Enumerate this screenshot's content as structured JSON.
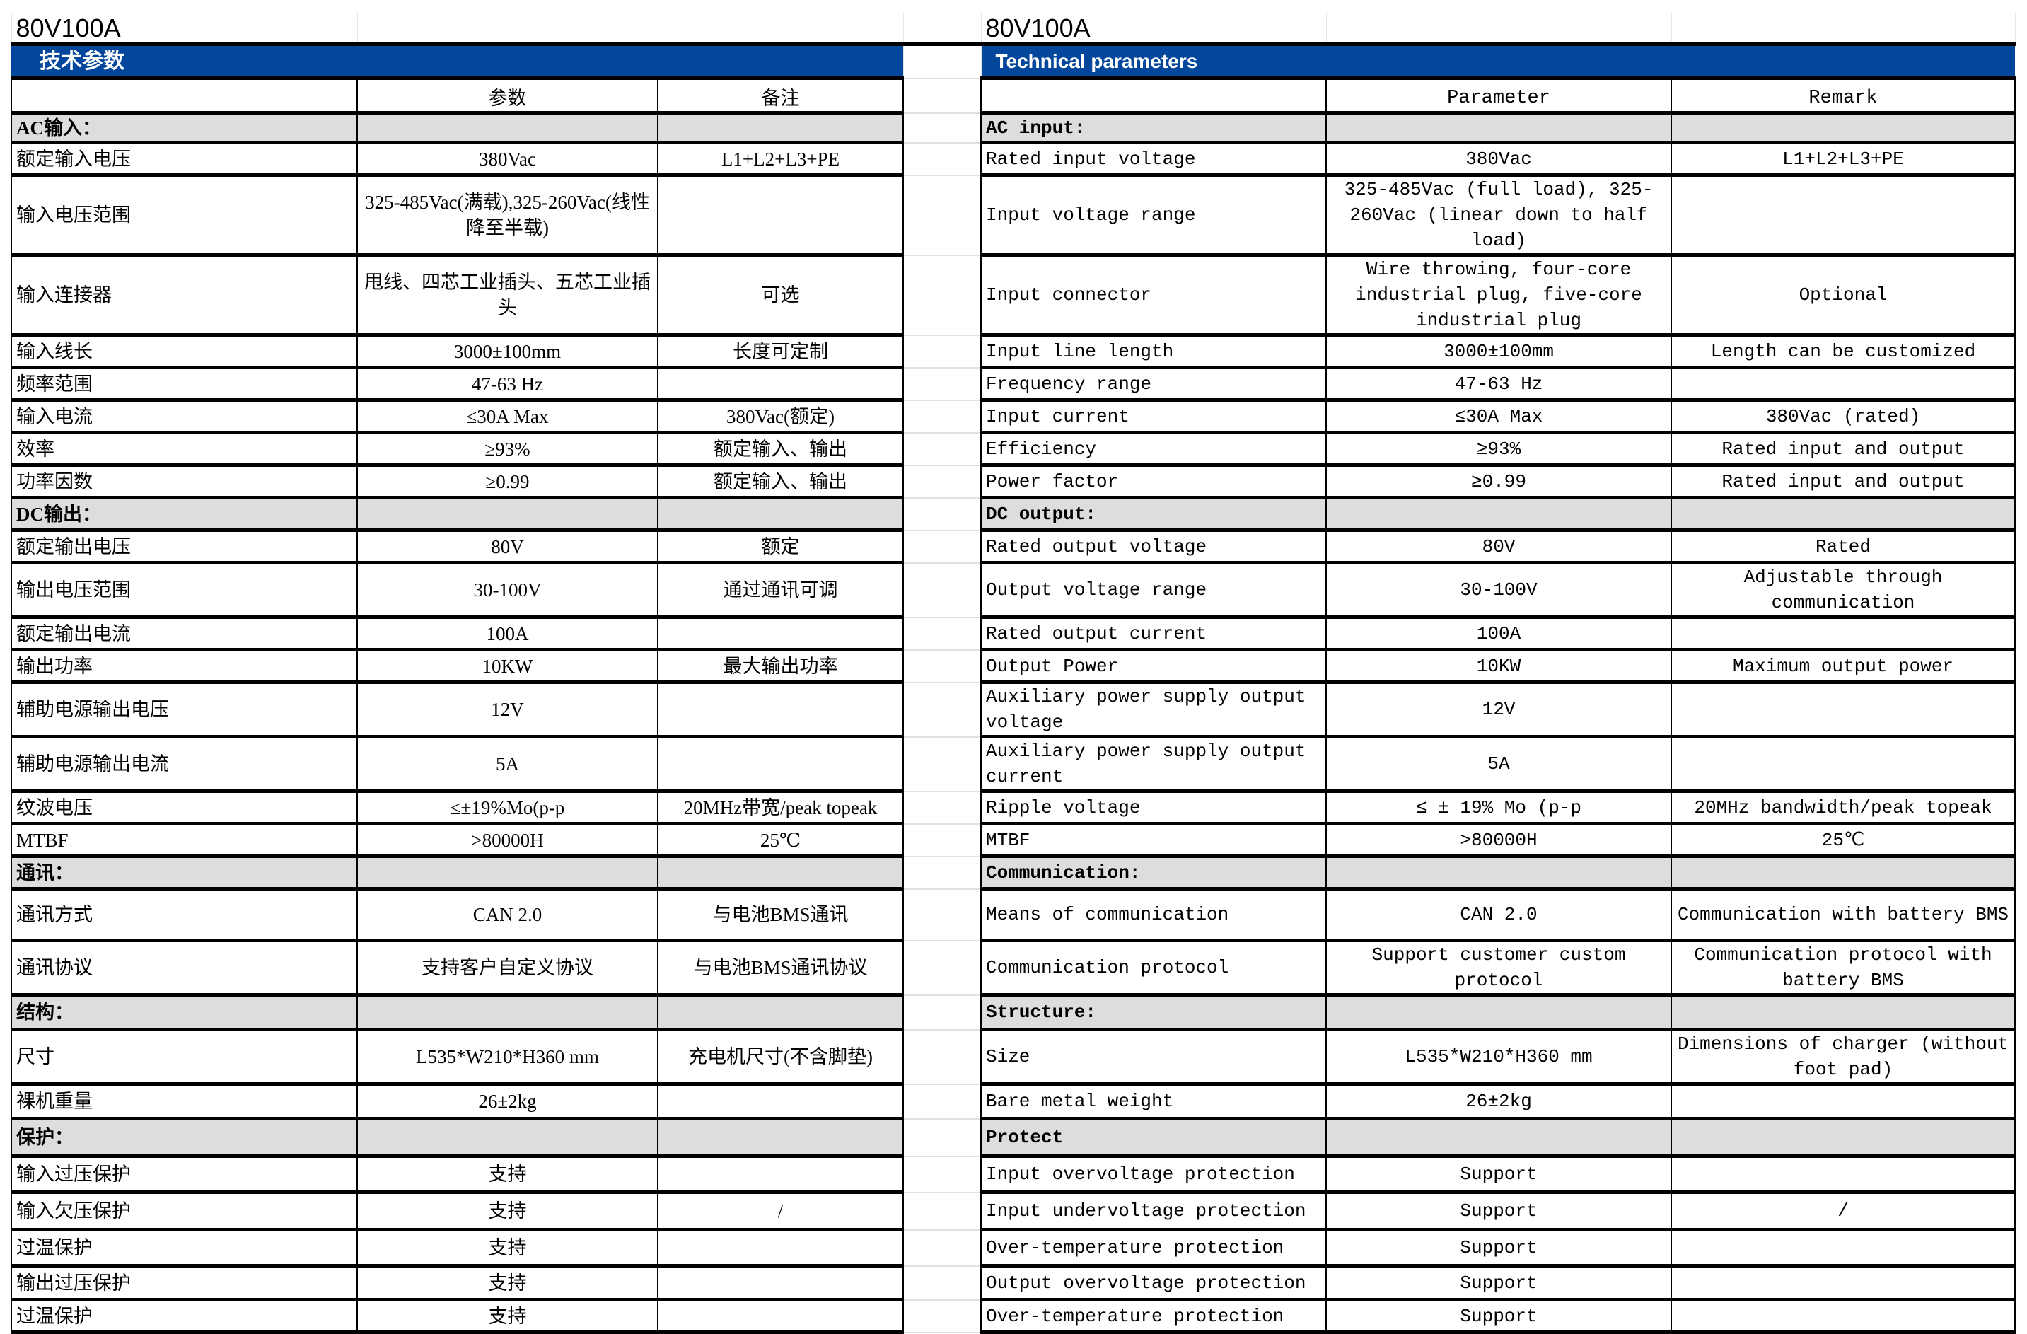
{
  "title_left": "80V100A",
  "title_right": "80V100A",
  "header_left": "技术参数",
  "header_right": "Technical parameters",
  "columns_left": [
    "",
    "参数",
    "备注"
  ],
  "columns_right": [
    "",
    "Parameter",
    "Remark"
  ],
  "colors": {
    "header_blue": "#02479b",
    "section_gray": "#dcdddd"
  },
  "rows": [
    {
      "section": true,
      "zh": [
        "AC输入：",
        "",
        ""
      ],
      "en": [
        "AC input:",
        "",
        ""
      ]
    },
    {
      "zh": [
        "额定输入电压",
        "380Vac",
        "L1+L2+L3+PE"
      ],
      "en": [
        "Rated input voltage",
        "380Vac",
        "L1+L2+L3+PE"
      ]
    },
    {
      "zh": [
        "输入电压范围",
        "325-485Vac(满载),325-260Vac(线性降至半载)",
        ""
      ],
      "en": [
        "Input voltage range",
        "325-485Vac (full load), 325-260Vac (linear down to half load)",
        ""
      ]
    },
    {
      "zh": [
        "输入连接器",
        "甩线、四芯工业插头、五芯工业插头",
        "可选"
      ],
      "en": [
        "Input connector",
        "Wire throwing, four-core industrial plug, five-core industrial plug",
        "Optional"
      ]
    },
    {
      "zh": [
        "输入线长",
        "3000±100mm",
        "长度可定制"
      ],
      "en": [
        "Input line length",
        "3000±100mm",
        "Length can be customized"
      ]
    },
    {
      "zh": [
        "频率范围",
        "47-63 Hz",
        ""
      ],
      "en": [
        "Frequency range",
        "47-63 Hz",
        ""
      ]
    },
    {
      "zh": [
        "输入电流",
        "≤30A Max",
        "380Vac(额定)"
      ],
      "en": [
        "Input current",
        "≤30A Max",
        "380Vac (rated)"
      ]
    },
    {
      "zh": [
        "效率",
        "≥93%",
        "额定输入、输出"
      ],
      "en": [
        "Efficiency",
        "≥93%",
        "Rated input and output"
      ]
    },
    {
      "zh": [
        "功率因数",
        "≥0.99",
        "额定输入、输出"
      ],
      "en": [
        "Power factor",
        "≥0.99",
        "Rated input and output"
      ]
    },
    {
      "section": true,
      "zh": [
        "DC输出：",
        "",
        ""
      ],
      "en": [
        "DC output:",
        "",
        ""
      ]
    },
    {
      "zh": [
        "额定输出电压",
        "80V",
        "额定"
      ],
      "en": [
        "Rated output voltage",
        "80V",
        "Rated"
      ]
    },
    {
      "zh": [
        "输出电压范围",
        "30-100V",
        "通过通讯可调"
      ],
      "en": [
        "Output voltage range",
        "30-100V",
        "Adjustable through communication"
      ]
    },
    {
      "zh": [
        "额定输出电流",
        "100A",
        ""
      ],
      "en": [
        "Rated output current",
        "100A",
        ""
      ]
    },
    {
      "zh": [
        "输出功率",
        "10KW",
        "最大输出功率"
      ],
      "en": [
        "Output Power",
        "10KW",
        "Maximum output power"
      ]
    },
    {
      "zh": [
        "辅助电源输出电压",
        "12V",
        ""
      ],
      "en": [
        "Auxiliary power supply output voltage",
        "12V",
        ""
      ]
    },
    {
      "zh": [
        "辅助电源输出电流",
        "5A",
        ""
      ],
      "en": [
        "Auxiliary power supply output current",
        "5A",
        ""
      ]
    },
    {
      "zh": [
        "纹波电压",
        "≤±19%Mo(p-p",
        "20MHz带宽/peak topeak"
      ],
      "en": [
        "Ripple voltage",
        "≤ ± 19% Mo (p-p",
        "20MHz bandwidth/peak topeak"
      ]
    },
    {
      "zh": [
        "MTBF",
        ">80000H",
        "25℃"
      ],
      "en": [
        "MTBF",
        ">80000H",
        "25℃"
      ]
    },
    {
      "section": true,
      "zh": [
        "通讯：",
        "",
        ""
      ],
      "en": [
        "Communication:",
        "",
        ""
      ]
    },
    {
      "zh": [
        "通讯方式",
        "CAN 2.0",
        "与电池BMS通讯"
      ],
      "en": [
        "Means of communication",
        "CAN 2.0",
        "Communication with battery BMS"
      ]
    },
    {
      "zh": [
        "通讯协议",
        "支持客户自定义协议",
        "与电池BMS通讯协议"
      ],
      "en": [
        "Communication protocol",
        "Support customer custom protocol",
        "Communication protocol with battery BMS"
      ]
    },
    {
      "section": true,
      "zh": [
        "结构：",
        "",
        ""
      ],
      "en": [
        "Structure:",
        "",
        ""
      ]
    },
    {
      "zh": [
        "尺寸",
        "L535*W210*H360 mm",
        "充电机尺寸(不含脚垫)"
      ],
      "en": [
        "Size",
        "L535*W210*H360 mm",
        "Dimensions of charger (without foot pad)"
      ]
    },
    {
      "zh": [
        "裸机重量",
        "26±2kg",
        ""
      ],
      "en": [
        "Bare metal weight",
        "26±2kg",
        ""
      ]
    },
    {
      "section": true,
      "zh": [
        "保护：",
        "",
        ""
      ],
      "en": [
        " Protect",
        "",
        ""
      ]
    },
    {
      "zh": [
        "输入过压保护",
        "支持",
        ""
      ],
      "en": [
        "Input overvoltage protection",
        "Support",
        ""
      ]
    },
    {
      "zh": [
        "输入欠压保护",
        "支持",
        "/"
      ],
      "en": [
        "Input undervoltage protection",
        "Support",
        "/"
      ]
    },
    {
      "zh": [
        "过温保护",
        "支持",
        ""
      ],
      "en": [
        "Over-temperature protection",
        "Support",
        ""
      ]
    },
    {
      "zh": [
        "输出过压保护",
        "支持",
        ""
      ],
      "en": [
        "Output overvoltage protection",
        "Support",
        ""
      ]
    },
    {
      "zh": [
        "过温保护",
        "支持",
        ""
      ],
      "en": [
        "Over-temperature protection",
        "Support",
        ""
      ]
    }
  ]
}
